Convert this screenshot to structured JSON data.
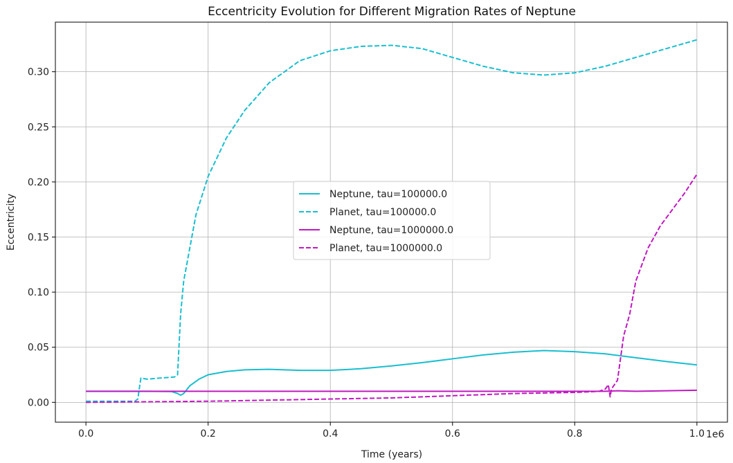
{
  "chart_data": {
    "type": "line",
    "title": "Eccentricity Evolution for Different Migration Rates of Neptune",
    "xlabel": "Time (years)",
    "ylabel": "Eccentricity",
    "x_offset_label": "1e6",
    "x_scale": 1000000,
    "xlim": [
      -50000,
      1050000
    ],
    "ylim": [
      -0.018,
      0.345
    ],
    "xticks": [
      0,
      200000,
      400000,
      600000,
      800000,
      1000000
    ],
    "xtick_labels": [
      "0.0",
      "0.2",
      "0.4",
      "0.6",
      "0.8",
      "1.0"
    ],
    "yticks": [
      0,
      0.05,
      0.1,
      0.15,
      0.2,
      0.25,
      0.3
    ],
    "ytick_labels": [
      "0.00",
      "0.05",
      "0.10",
      "0.15",
      "0.20",
      "0.25",
      "0.30"
    ],
    "grid": true,
    "legend_position": "center",
    "series": [
      {
        "name": "Neptune, tau=100000.0",
        "color": "#17becf",
        "style": "solid",
        "points": [
          [
            0,
            0.01
          ],
          [
            100000,
            0.01
          ],
          [
            140000,
            0.0098
          ],
          [
            150000,
            0.008
          ],
          [
            155000,
            0.0065
          ],
          [
            160000,
            0.008
          ],
          [
            170000,
            0.015
          ],
          [
            185000,
            0.021
          ],
          [
            200000,
            0.025
          ],
          [
            230000,
            0.028
          ],
          [
            260000,
            0.0295
          ],
          [
            300000,
            0.03
          ],
          [
            350000,
            0.029
          ],
          [
            400000,
            0.029
          ],
          [
            450000,
            0.0305
          ],
          [
            500000,
            0.033
          ],
          [
            550000,
            0.036
          ],
          [
            600000,
            0.0395
          ],
          [
            650000,
            0.043
          ],
          [
            700000,
            0.0455
          ],
          [
            750000,
            0.047
          ],
          [
            800000,
            0.046
          ],
          [
            850000,
            0.044
          ],
          [
            900000,
            0.0405
          ],
          [
            950000,
            0.037
          ],
          [
            1000000,
            0.034
          ]
        ]
      },
      {
        "name": "Planet, tau=100000.0",
        "color": "#17becf",
        "style": "dashed",
        "points": [
          [
            0,
            0.001
          ],
          [
            80000,
            0.001
          ],
          [
            85000,
            0.003
          ],
          [
            88000,
            0.015
          ],
          [
            90000,
            0.022
          ],
          [
            100000,
            0.021
          ],
          [
            120000,
            0.022
          ],
          [
            145000,
            0.023
          ],
          [
            150000,
            0.025
          ],
          [
            155000,
            0.08
          ],
          [
            160000,
            0.11
          ],
          [
            170000,
            0.14
          ],
          [
            180000,
            0.17
          ],
          [
            200000,
            0.205
          ],
          [
            230000,
            0.24
          ],
          [
            260000,
            0.265
          ],
          [
            300000,
            0.29
          ],
          [
            350000,
            0.31
          ],
          [
            400000,
            0.319
          ],
          [
            450000,
            0.323
          ],
          [
            500000,
            0.324
          ],
          [
            550000,
            0.321
          ],
          [
            600000,
            0.313
          ],
          [
            650000,
            0.305
          ],
          [
            700000,
            0.299
          ],
          [
            750000,
            0.297
          ],
          [
            800000,
            0.299
          ],
          [
            850000,
            0.305
          ],
          [
            900000,
            0.313
          ],
          [
            950000,
            0.321
          ],
          [
            1000000,
            0.329
          ]
        ]
      },
      {
        "name": "Neptune, tau=1000000.0",
        "color": "#c017c0",
        "style": "solid",
        "points": [
          [
            0,
            0.01
          ],
          [
            200000,
            0.01
          ],
          [
            400000,
            0.01
          ],
          [
            600000,
            0.01
          ],
          [
            800000,
            0.01
          ],
          [
            850000,
            0.01
          ],
          [
            870000,
            0.0105
          ],
          [
            900000,
            0.01
          ],
          [
            950000,
            0.0105
          ],
          [
            1000000,
            0.011
          ]
        ]
      },
      {
        "name": "Planet, tau=1000000.0",
        "color": "#c017c0",
        "style": "dashed",
        "points": [
          [
            0,
            0.0
          ],
          [
            100000,
            0.0005
          ],
          [
            200000,
            0.001
          ],
          [
            300000,
            0.002
          ],
          [
            400000,
            0.003
          ],
          [
            500000,
            0.004
          ],
          [
            600000,
            0.006
          ],
          [
            700000,
            0.008
          ],
          [
            800000,
            0.009
          ],
          [
            840000,
            0.01
          ],
          [
            850000,
            0.012
          ],
          [
            855000,
            0.016
          ],
          [
            858000,
            0.005
          ],
          [
            860000,
            0.012
          ],
          [
            870000,
            0.02
          ],
          [
            880000,
            0.06
          ],
          [
            890000,
            0.08
          ],
          [
            900000,
            0.11
          ],
          [
            920000,
            0.14
          ],
          [
            940000,
            0.16
          ],
          [
            960000,
            0.175
          ],
          [
            980000,
            0.19
          ],
          [
            1000000,
            0.207
          ]
        ]
      }
    ]
  }
}
